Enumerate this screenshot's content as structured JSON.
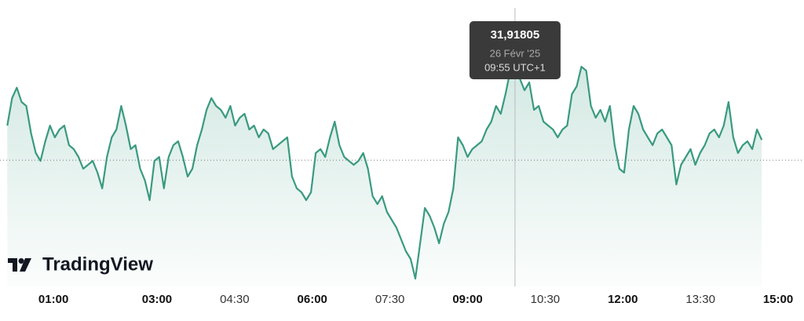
{
  "chart_data": {
    "type": "area",
    "logo": "TradingView",
    "color": "#3a9a80",
    "baseline": 31.775,
    "xlim": [
      -2,
      930
    ],
    "ylim": [
      31.582,
      32.02
    ],
    "xticks": [
      {
        "value": 60,
        "label": "01:00"
      },
      {
        "value": 180,
        "label": "03:00"
      },
      {
        "value": 270,
        "label": "04:30"
      },
      {
        "value": 360,
        "label": "06:00"
      },
      {
        "value": 450,
        "label": "07:30"
      },
      {
        "value": 540,
        "label": "09:00"
      },
      {
        "value": 630,
        "label": "10:30"
      },
      {
        "value": 720,
        "label": "12:00"
      },
      {
        "value": 810,
        "label": "13:30"
      },
      {
        "value": 900,
        "label": "15:00"
      }
    ],
    "tooltip": {
      "x": 595,
      "value": 31.91805,
      "label": "31,91805",
      "date": "26 Févr '25",
      "time": "09:55 UTC+1"
    },
    "x": [
      6.5,
      12,
      17.5,
      23,
      28.5,
      34,
      39.5,
      45,
      50.5,
      56,
      61.5,
      67,
      72.5,
      78,
      83.5,
      89,
      94.5,
      100,
      105.5,
      111,
      116.5,
      122,
      127.5,
      133,
      138.5,
      144,
      149.5,
      155,
      160.5,
      166,
      171.5,
      177,
      182.5,
      188,
      193.5,
      199,
      204.5,
      210,
      215.5,
      221,
      226.5,
      232,
      237.5,
      243,
      248.5,
      254,
      259.5,
      265,
      270.5,
      276,
      281.5,
      287,
      292.5,
      298,
      303.5,
      309,
      314.5,
      320,
      325.5,
      331,
      336.5,
      342,
      347.5,
      353,
      358.5,
      364,
      369.5,
      375,
      380.5,
      386,
      391.5,
      397,
      402.5,
      408,
      413.5,
      419,
      424.5,
      430,
      435.5,
      441,
      446.5,
      452,
      457.5,
      463,
      468.5,
      474,
      479.5,
      485,
      490.5,
      496,
      501.5,
      507,
      512.5,
      518,
      523.5,
      529,
      534.5,
      540,
      545.5,
      551,
      556.5,
      562,
      567.5,
      573,
      578.5,
      584,
      589.5,
      595,
      600.5,
      606,
      611.5,
      617,
      622.5,
      628,
      633.5,
      639,
      644.5,
      650,
      655.5,
      661,
      666.5,
      672,
      677.5,
      683,
      688.5,
      694,
      699.5,
      705,
      710.5,
      716,
      721.5,
      727,
      732.5,
      738,
      743.5,
      749,
      754.5,
      760,
      765.5,
      771,
      776.5,
      782,
      787.5,
      793,
      798.5,
      804,
      809.5,
      815,
      820.5,
      826,
      831.5,
      837,
      842.5,
      848,
      853.5,
      859,
      864.5,
      870,
      875.5,
      881
    ],
    "values": [
      31.828,
      31.87,
      31.886,
      31.864,
      31.858,
      31.816,
      31.786,
      31.774,
      31.804,
      31.828,
      31.81,
      31.822,
      31.828,
      31.798,
      31.792,
      31.78,
      31.762,
      31.768,
      31.774,
      31.756,
      31.732,
      31.78,
      31.81,
      31.822,
      31.858,
      31.828,
      31.792,
      31.798,
      31.762,
      31.744,
      31.714,
      31.774,
      31.78,
      31.732,
      31.78,
      31.798,
      31.804,
      31.78,
      31.75,
      31.762,
      31.798,
      31.822,
      31.852,
      31.87,
      31.858,
      31.852,
      31.84,
      31.858,
      31.828,
      31.84,
      31.846,
      31.822,
      31.828,
      31.81,
      31.822,
      31.816,
      31.792,
      31.798,
      31.804,
      31.81,
      31.75,
      31.732,
      31.726,
      31.714,
      31.726,
      31.786,
      31.792,
      31.78,
      31.81,
      31.834,
      31.798,
      31.78,
      31.774,
      31.768,
      31.774,
      31.786,
      31.762,
      31.72,
      31.708,
      31.72,
      31.696,
      31.684,
      31.672,
      31.654,
      31.636,
      31.624,
      31.594,
      31.648,
      31.702,
      31.69,
      31.672,
      31.648,
      31.678,
      31.696,
      31.732,
      31.81,
      31.798,
      31.78,
      31.792,
      31.798,
      31.804,
      31.822,
      31.834,
      31.858,
      31.846,
      31.876,
      31.912,
      31.91805,
      31.9,
      31.882,
      31.894,
      31.852,
      31.858,
      31.834,
      31.828,
      31.822,
      31.81,
      31.822,
      31.828,
      31.876,
      31.888,
      31.918,
      31.912,
      31.858,
      31.84,
      31.852,
      31.834,
      31.858,
      31.798,
      31.762,
      31.756,
      31.822,
      31.858,
      31.846,
      31.822,
      31.81,
      31.798,
      31.816,
      31.822,
      31.81,
      31.798,
      31.738,
      31.768,
      31.78,
      31.792,
      31.768,
      31.786,
      31.798,
      31.816,
      31.822,
      31.81,
      31.828,
      31.864,
      31.81,
      31.786,
      31.798,
      31.804,
      31.792,
      31.822,
      31.806
    ]
  }
}
